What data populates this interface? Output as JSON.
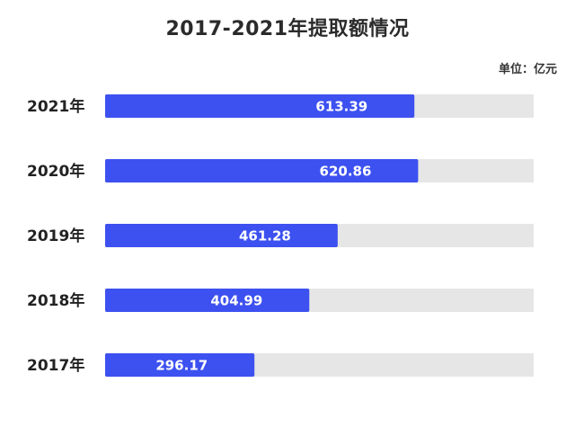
{
  "chart_data": {
    "type": "bar",
    "orientation": "horizontal",
    "title": "2017-2021年提取额情况",
    "unit_label": "单位：亿元",
    "categories": [
      "2021年",
      "2020年",
      "2019年",
      "2018年",
      "2017年"
    ],
    "values": [
      613.39,
      620.86,
      461.28,
      404.99,
      296.17
    ],
    "value_labels": [
      "613.39",
      "620.86",
      "461.28",
      "404.99",
      "296.17"
    ],
    "xlim": [
      0,
      850
    ],
    "grid": false,
    "legend": "none",
    "colors": {
      "bar": "#3d51f0",
      "track": "#e6e6e6"
    }
  }
}
